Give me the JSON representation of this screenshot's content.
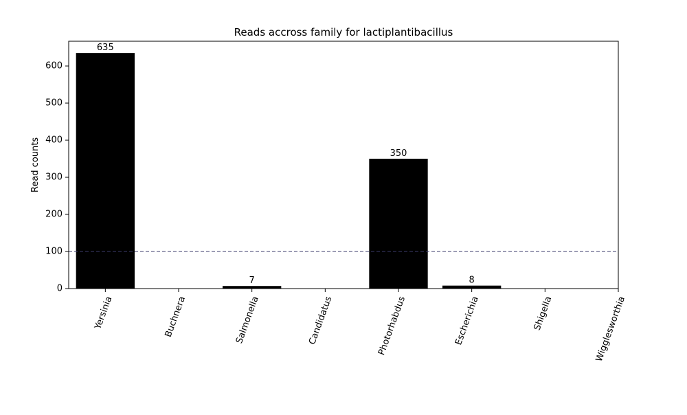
{
  "chart_data": {
    "type": "bar",
    "title": "Reads accross family for lactiplantibacillus",
    "xlabel": "",
    "ylabel": "Read counts",
    "categories": [
      "Yersinia",
      "Buchnera",
      "Salmonella",
      "Candidatus",
      "Photorhabdus",
      "Escherichia",
      "Shigella",
      "Wigglesworthia"
    ],
    "values": [
      635,
      0,
      7,
      0,
      350,
      8,
      0,
      0
    ],
    "bar_labels": [
      "635",
      "",
      "7",
      "",
      "350",
      "8",
      "",
      ""
    ],
    "yticks": [
      0,
      100,
      200,
      300,
      400,
      500,
      600
    ],
    "ylim": [
      0,
      666.75
    ],
    "threshold": 100,
    "grid": false,
    "legend": "none",
    "colors": {
      "bar": "#000000",
      "threshold_line": "#3b3b6b",
      "axes": "#000000"
    }
  }
}
